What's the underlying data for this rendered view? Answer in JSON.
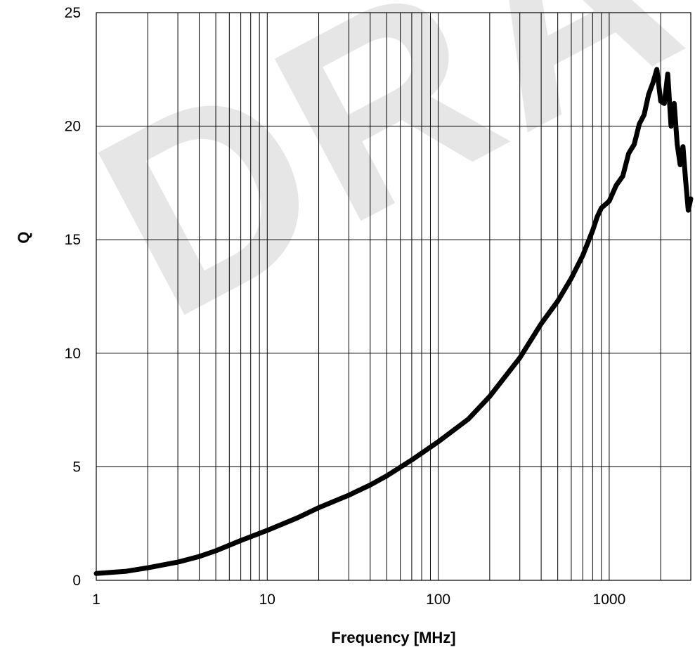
{
  "watermark": "DRAFT",
  "chart_data": {
    "type": "line",
    "title": "",
    "xlabel": "Frequency [MHz]",
    "ylabel": "Q",
    "x_scale": "log",
    "xlim": [
      1,
      3000
    ],
    "ylim": [
      0,
      25
    ],
    "grid": true,
    "x_ticks": [
      "1",
      "10",
      "100",
      "1000"
    ],
    "y_ticks": [
      "0",
      "5",
      "10",
      "15",
      "20",
      "25"
    ],
    "line_color": "#000000",
    "series": [
      {
        "x": [
          1,
          1.5,
          2,
          3,
          4,
          5,
          7,
          10,
          15,
          20,
          30,
          40,
          50,
          70,
          100,
          150,
          200,
          300,
          400,
          500,
          600,
          700,
          800,
          850,
          900,
          1000,
          1100,
          1200,
          1300,
          1400,
          1500,
          1600,
          1700,
          1800,
          1900,
          2000,
          2100,
          2200,
          2300,
          2400,
          2500,
          2600,
          2700,
          2800,
          2900,
          3000
        ],
        "y": [
          0.3,
          0.4,
          0.55,
          0.8,
          1.05,
          1.3,
          1.75,
          2.2,
          2.75,
          3.2,
          3.75,
          4.2,
          4.6,
          5.3,
          6.1,
          7.1,
          8.1,
          9.8,
          11.3,
          12.3,
          13.3,
          14.3,
          15.4,
          16.0,
          16.4,
          16.7,
          17.4,
          17.8,
          18.8,
          19.2,
          20.1,
          20.5,
          21.4,
          21.9,
          22.5,
          21.1,
          21.0,
          22.3,
          20.0,
          21.0,
          19.2,
          18.3,
          19.1,
          17.6,
          16.3,
          16.8
        ]
      }
    ]
  }
}
